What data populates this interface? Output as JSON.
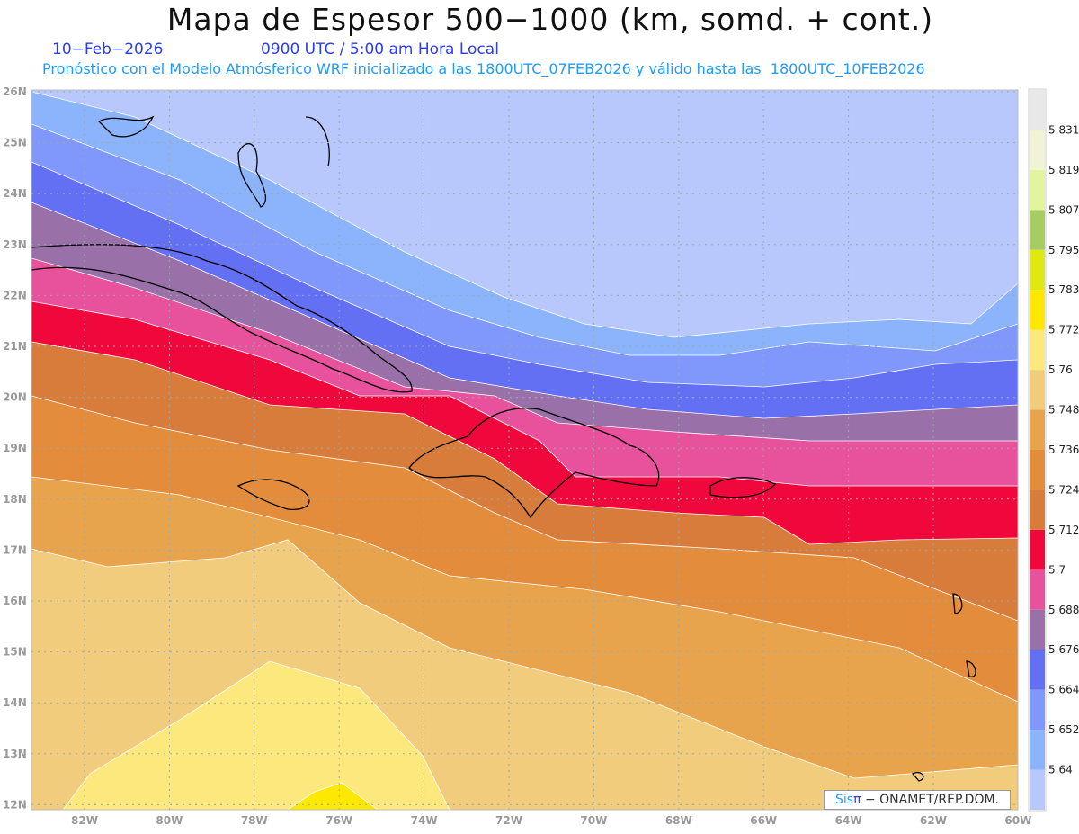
{
  "title": "Mapa de Espesor 500−1000 (km, somd. + cont.)",
  "date": "10−Feb−2026",
  "time": "0900 UTC / 5:00 am Hora Local",
  "subtitle": "Pronóstico con el Modelo Atmósferico WRF inicializado a las 1800UTC_07FEB2026 y válido hasta las  1800UTC_10FEB2026",
  "watermark": {
    "brand": "Sis",
    "pi": "π",
    "rest": " −  ONAMET/REP.DOM."
  },
  "axes": {
    "lon_labels": [
      "82W",
      "80W",
      "78W",
      "76W",
      "74W",
      "72W",
      "70W",
      "68W",
      "66W",
      "64W",
      "62W",
      "60W"
    ],
    "lat_labels": [
      "26N",
      "25N",
      "24N",
      "23N",
      "22N",
      "21N",
      "20N",
      "19N",
      "18N",
      "17N",
      "16N",
      "15N",
      "14N",
      "13N",
      "12N"
    ]
  },
  "colorbar": {
    "labels": [
      "5.64",
      "5.652",
      "5.664",
      "5.676",
      "5.688",
      "5.7",
      "5.712",
      "5.724",
      "5.736",
      "5.748",
      "5.76",
      "5.772",
      "5.783",
      "5.795",
      "5.807",
      "5.819",
      "5.831"
    ],
    "colors": [
      "#b8c8fc",
      "#8cb4fc",
      "#8098fc",
      "#6470f4",
      "#9a70a8",
      "#e8529c",
      "#f0083c",
      "#d87c3c",
      "#e28c3c",
      "#e8a44c",
      "#f0cc7c",
      "#fce87c",
      "#fce800",
      "#e0e814",
      "#a8cc64",
      "#e4f49c",
      "#f0f4d4",
      "#e8e8e8"
    ]
  }
}
